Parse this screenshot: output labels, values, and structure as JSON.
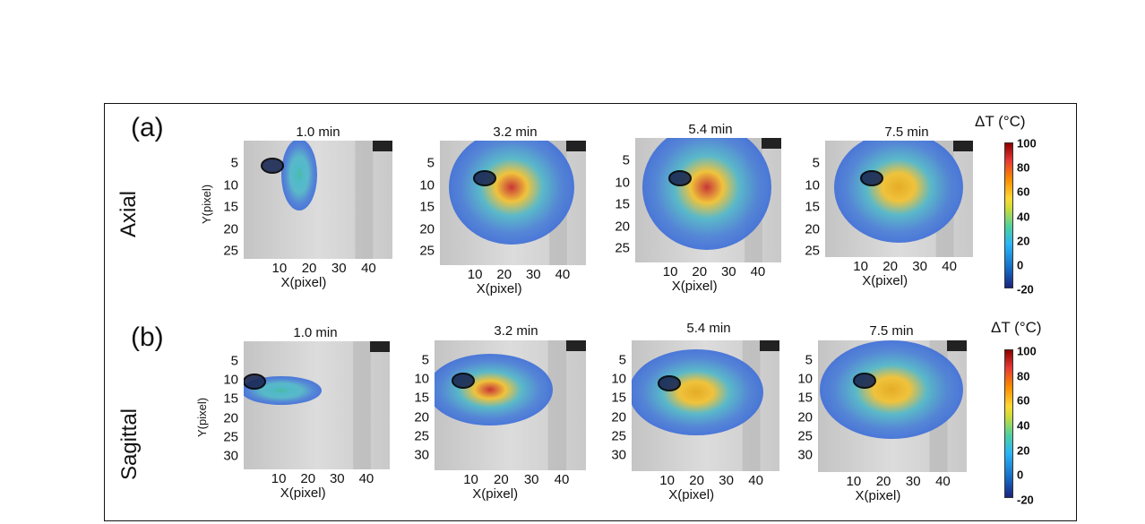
{
  "panel_labels": {
    "a": "(a)",
    "b": "(b)"
  },
  "orientations": {
    "axial": "Axial",
    "sagittal": "Sagittal"
  },
  "time_titles": [
    "1.0 min",
    "3.2 min",
    "5.4 min",
    "7.5 min"
  ],
  "x_axis_label": "X(pixel)",
  "y_axis_label": "Y(pixel)",
  "x_ticks": [
    "10",
    "20",
    "30",
    "40"
  ],
  "axial_y_ticks": [
    "5",
    "10",
    "15",
    "20",
    "25"
  ],
  "sagittal_y_ticks": [
    "5",
    "10",
    "15",
    "20",
    "25",
    "30"
  ],
  "colorbar": {
    "title": "ΔT (°C)",
    "ticks": [
      "100",
      "80",
      "60",
      "40",
      "20",
      "0",
      "-20"
    ],
    "range": [
      -20,
      100
    ]
  },
  "colors": {
    "frame": "#111111",
    "hot": "#c62828",
    "cool": "#3f6fd8"
  }
}
